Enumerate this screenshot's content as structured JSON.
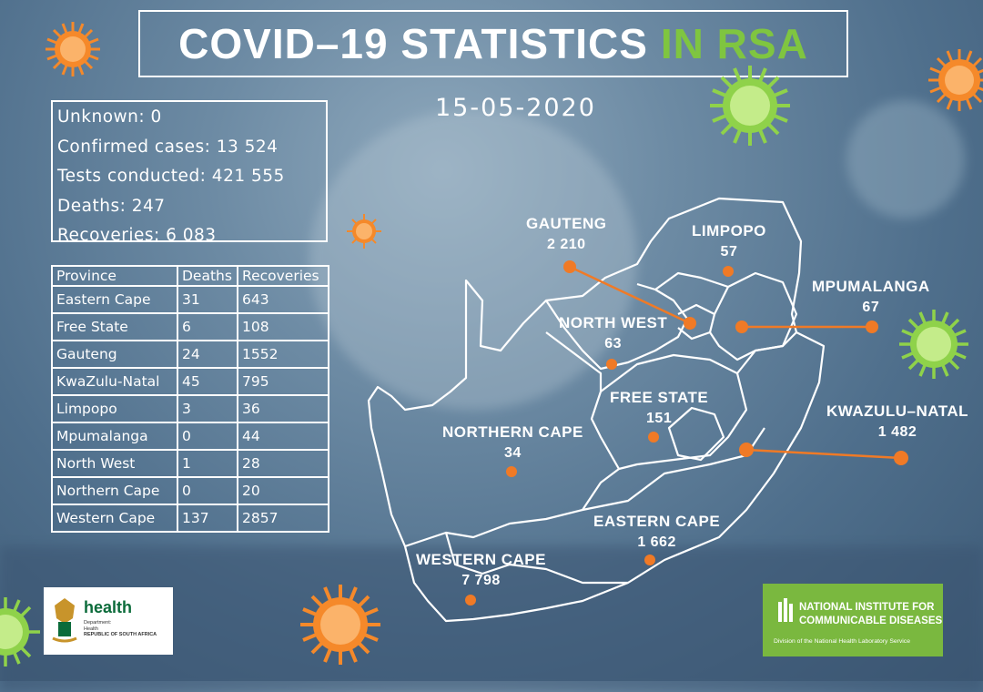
{
  "header": {
    "title_main": "COVID–19 STATISTICS",
    "title_highlight": "IN RSA",
    "date": "15-05-2020"
  },
  "stats": {
    "unknown": "Unknown: 0",
    "confirmed": "Confirmed cases: 13 524",
    "tests": "Tests conducted: 421 555",
    "deaths": "Deaths: 247",
    "recoveries": "Recoveries:  6 083"
  },
  "table": {
    "headers": [
      "Province",
      "Deaths",
      "Recoveries"
    ],
    "rows": [
      [
        "Eastern Cape",
        "31",
        "643"
      ],
      [
        "Free State",
        "6",
        "108"
      ],
      [
        "Gauteng",
        "24",
        "1552"
      ],
      [
        "KwaZulu-Natal",
        "45",
        "795"
      ],
      [
        "Limpopo",
        "3",
        "36"
      ],
      [
        "Mpumalanga",
        "0",
        "44"
      ],
      [
        "North West",
        "1",
        "28"
      ],
      [
        "Northern Cape",
        "0",
        "20"
      ],
      [
        "Western Cape",
        "137",
        "2857"
      ]
    ]
  },
  "map": {
    "gauteng": {
      "name": "GAUTENG",
      "value": "2 210"
    },
    "limpopo": {
      "name": "LIMPOPO",
      "value": "57"
    },
    "mpumalanga": {
      "name": "MPUMALANGA",
      "value": "67"
    },
    "north_west": {
      "name": "NORTH WEST",
      "value": "63"
    },
    "free_state": {
      "name": "FREE STATE",
      "value": "151"
    },
    "kwazulu_natal": {
      "name": "KWAZULU–NATAL",
      "value": "1 482"
    },
    "northern_cape": {
      "name": "NORTHERN CAPE",
      "value": "34"
    },
    "eastern_cape": {
      "name": "EASTERN CAPE",
      "value": "1 662"
    },
    "western_cape": {
      "name": "WESTERN CAPE",
      "value": "7 798"
    }
  },
  "logos": {
    "health_word": "health",
    "health_sub1": "Department:",
    "health_sub2": "Health",
    "health_sub3": "REPUBLIC OF SOUTH AFRICA",
    "nicd_line1": "NATIONAL INSTITUTE FOR",
    "nicd_line2": "COMMUNICABLE DISEASES",
    "nicd_line3": "Division of the National Health Laboratory Service"
  },
  "colors": {
    "accent_green": "#7fc540",
    "marker_orange": "#f07a26",
    "virus_orange": "#f5892a",
    "virus_green": "#8fd24a"
  }
}
